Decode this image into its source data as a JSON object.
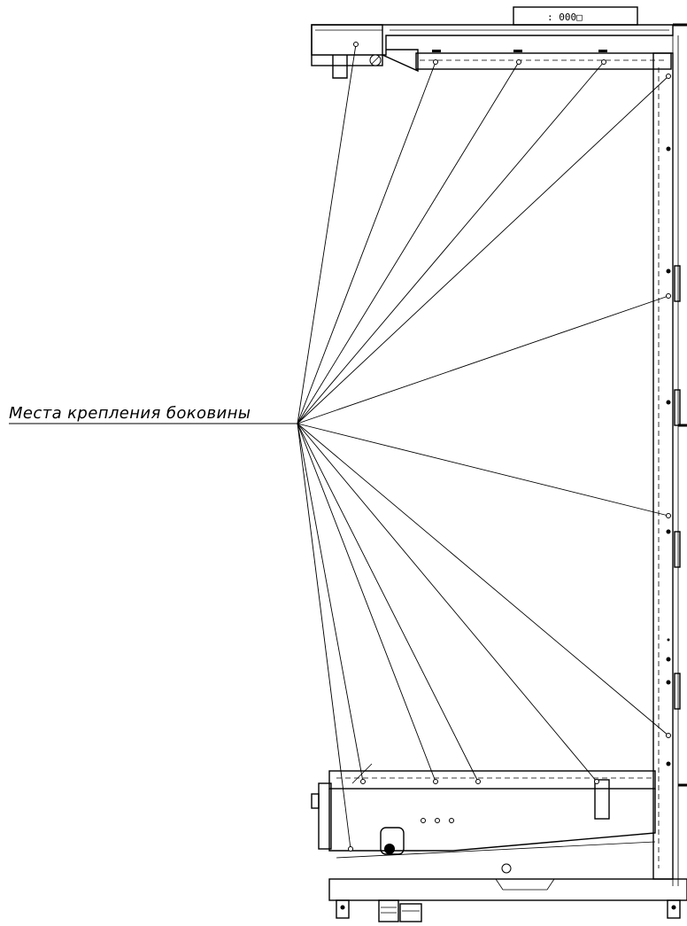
{
  "callout": {
    "label": "Места крепления боковины"
  },
  "display_box": {
    "text": ": 000□"
  }
}
